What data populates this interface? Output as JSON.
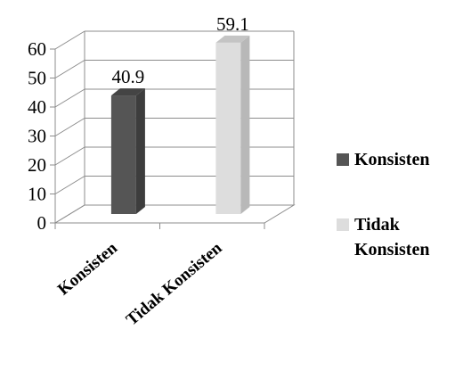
{
  "chart_data": {
    "type": "bar",
    "categories": [
      "Konsisten",
      "Tidak Konsisten"
    ],
    "values": [
      40.9,
      59.1
    ],
    "data_labels": [
      "40.9",
      "59.1"
    ],
    "ylim": [
      0,
      60
    ],
    "yticks": [
      "0",
      "10",
      "20",
      "30",
      "40",
      "50",
      "60"
    ],
    "grid": true,
    "three_d": true,
    "legend": {
      "position": "right",
      "entries": [
        {
          "lines": [
            "Konsisten"
          ],
          "color": "#555555"
        },
        {
          "lines": [
            "Tidak",
            "Konsisten"
          ],
          "color": "#dddddd"
        }
      ]
    },
    "colors": [
      "#555555",
      "#dddddd"
    ]
  }
}
